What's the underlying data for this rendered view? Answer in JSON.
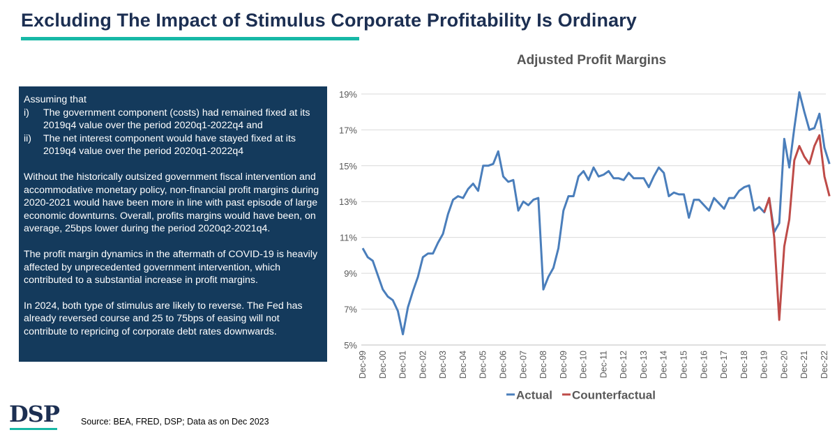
{
  "header": {
    "title": "Excluding The Impact of Stimulus Corporate Profitability Is Ordinary"
  },
  "info_box": {
    "intro": "Assuming that",
    "assumptions": [
      {
        "num": "i)",
        "text": "The government component (costs) had remained fixed at its 2019q4 value over the period 2020q1-2022q4 and"
      },
      {
        "num": "ii)",
        "text": "The net interest component would have stayed fixed at its 2019q4 value over the period 2020q1-2022q4"
      }
    ],
    "paragraphs": [
      "Without the historically outsized government fiscal intervention and accommodative monetary policy, non-financial profit margins during 2020-2021 would have been more in line with past episode of large economic downturns. Overall, profits margins would have been, on average, 25bps lower during the period 2020q2-2021q4.",
      "The profit margin dynamics in the aftermath of COVID-19 is heavily affected by unprecedented government intervention, which contributed to a substantial increase in profit margins.",
      "In 2024, both type of stimulus are likely to reverse. The Fed has already reversed course and 25 to 75bps of easing will not contribute to repricing of corporate debt rates downwards."
    ]
  },
  "footer": {
    "logo_text": "DSP",
    "source": "Source: BEA, FRED, DSP; Data as on Dec 2023"
  },
  "chart_data": {
    "type": "line",
    "title": "Adjusted Profit Margins",
    "xlabel": "",
    "ylabel": "",
    "ylim": [
      5,
      19.5
    ],
    "yticks": [
      5,
      7,
      9,
      11,
      13,
      15,
      17,
      19
    ],
    "ytick_labels": [
      "5%",
      "7%",
      "9%",
      "11%",
      "13%",
      "15%",
      "17%",
      "19%"
    ],
    "grid": true,
    "legend_position": "bottom",
    "start_quarter": "Dec-99",
    "x_labels": [
      "Dec-99",
      "Dec-00",
      "Dec-01",
      "Dec-02",
      "Dec-03",
      "Dec-04",
      "Dec-05",
      "Dec-06",
      "Dec-07",
      "Dec-08",
      "Dec-09",
      "Dec-10",
      "Dec-11",
      "Dec-12",
      "Dec-13",
      "Dec-14",
      "Dec-15",
      "Dec-16",
      "Dec-17",
      "Dec-18",
      "Dec-19",
      "Dec-20",
      "Dec-21",
      "Dec-22"
    ],
    "series": [
      {
        "name": "Actual",
        "color": "#4a7ebb",
        "start_index": 0,
        "values": [
          10.4,
          9.9,
          9.7,
          8.9,
          8.1,
          7.7,
          7.5,
          6.9,
          5.6,
          7.1,
          8.0,
          8.8,
          9.9,
          10.1,
          10.1,
          10.7,
          11.2,
          12.3,
          13.1,
          13.3,
          13.2,
          13.7,
          14.0,
          13.6,
          15.0,
          15.0,
          15.1,
          15.8,
          14.4,
          14.1,
          14.2,
          12.5,
          13.0,
          12.8,
          13.1,
          13.2,
          8.1,
          8.8,
          9.3,
          10.4,
          12.5,
          13.3,
          13.3,
          14.4,
          14.7,
          14.2,
          14.9,
          14.4,
          14.5,
          14.7,
          14.3,
          14.3,
          14.2,
          14.6,
          14.3,
          14.3,
          14.3,
          13.8,
          14.4,
          14.9,
          14.6,
          13.3,
          13.5,
          13.4,
          13.4,
          12.1,
          13.1,
          13.1,
          12.8,
          12.5,
          13.2,
          12.9,
          12.6,
          13.2,
          13.2,
          13.6,
          13.8,
          13.9,
          12.5,
          12.7,
          12.4,
          13.2,
          11.3,
          11.8,
          16.5,
          14.9,
          17.1,
          19.1,
          18.0,
          17.0,
          17.1,
          17.9,
          16.0,
          15.1
        ]
      },
      {
        "name": "Counterfactual",
        "color": "#be4b48",
        "start_index": 80,
        "values": [
          12.4,
          13.2,
          11.0,
          6.4,
          10.5,
          12.0,
          15.3,
          16.1,
          15.5,
          15.1,
          16.1,
          16.7,
          14.4,
          13.3
        ]
      }
    ]
  }
}
